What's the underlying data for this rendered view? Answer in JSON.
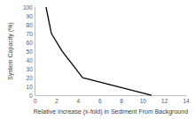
{
  "chart_data": {
    "type": "line",
    "x_label": "Relative Increase (x-fold) in Sediment From Background",
    "y_label": "System Capacity (%)",
    "x": [
      1,
      1.5,
      2.5,
      4.4,
      10.8
    ],
    "values": [
      100,
      70,
      50,
      20,
      0
    ],
    "color": "#000000",
    "marker": "none",
    "xlim": [
      0,
      14
    ],
    "xticks": [
      0,
      2,
      4,
      6,
      8,
      10,
      12,
      14
    ],
    "ylim": [
      0,
      100
    ],
    "yticks": [
      0,
      10,
      20,
      30,
      40,
      50,
      60,
      70,
      80,
      90,
      100
    ],
    "grid": false
  }
}
